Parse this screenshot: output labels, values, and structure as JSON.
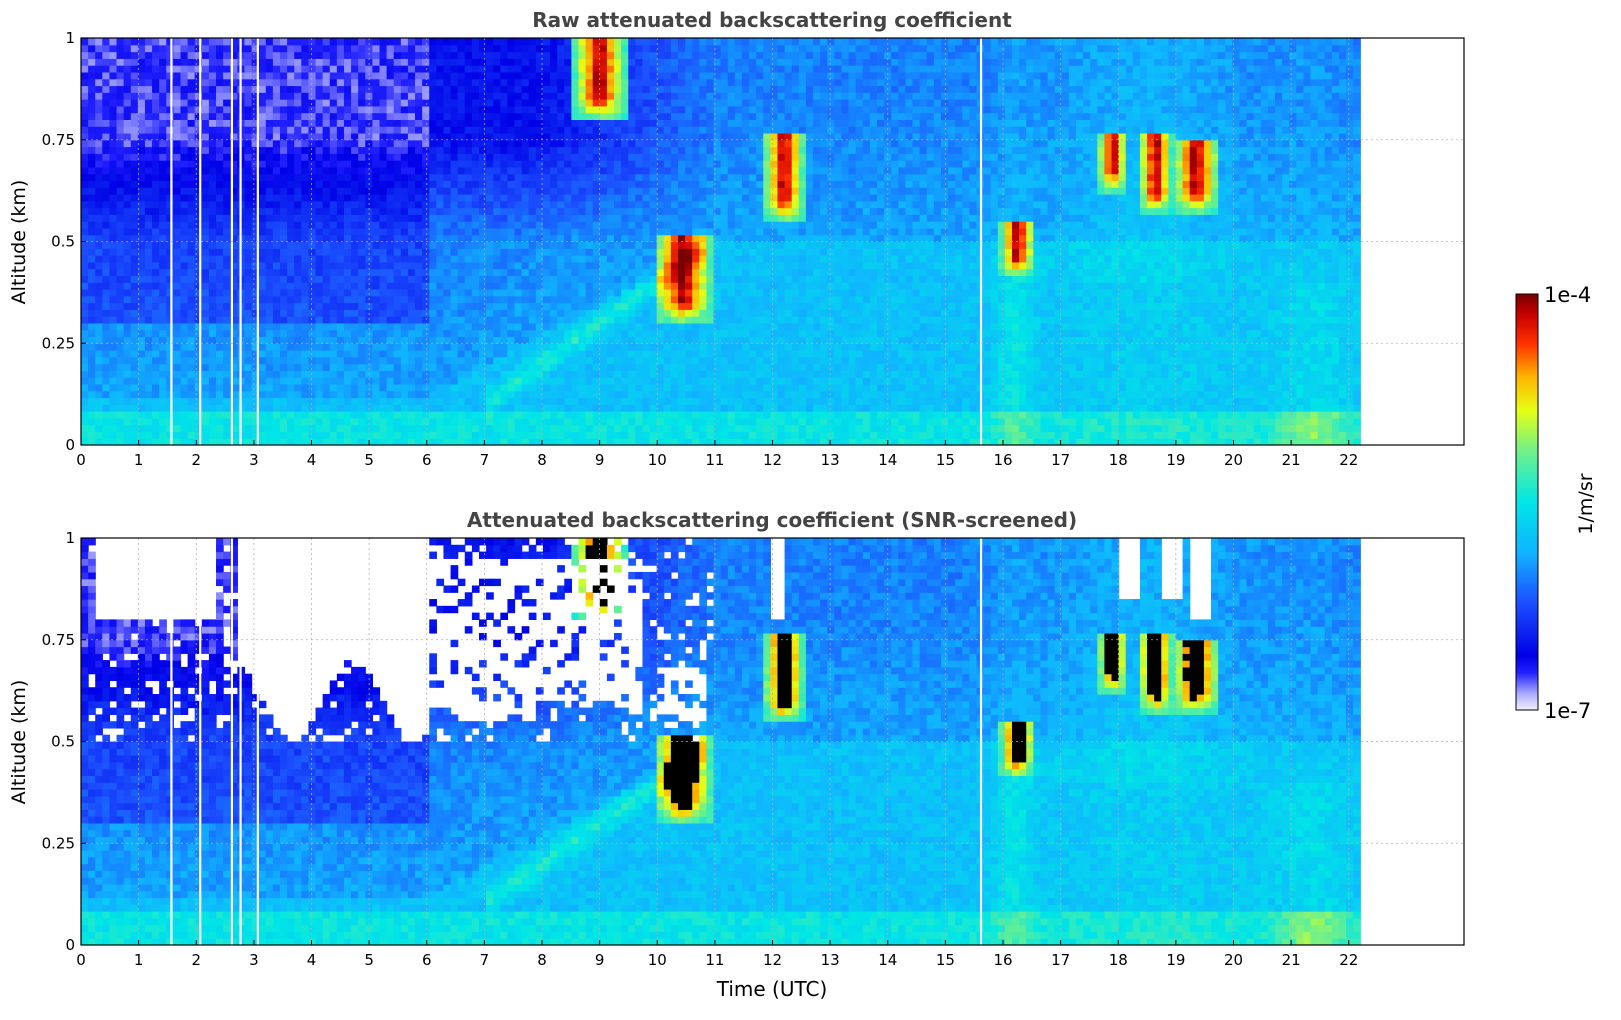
{
  "chart_data": {
    "type": "heatmap",
    "x_label_shared": "Time (UTC)",
    "panels": [
      {
        "title": "Raw attenuated backscattering coefficient",
        "xlabel": "",
        "ylabel": "Altitude (km)",
        "x_range": [
          0,
          24
        ],
        "y_range": [
          0,
          1
        ],
        "data_extent_x": [
          0,
          22.2
        ],
        "x_ticks": [
          "0",
          "1",
          "2",
          "3",
          "4",
          "5",
          "6",
          "7",
          "8",
          "9",
          "10",
          "11",
          "12",
          "13",
          "14",
          "15",
          "16",
          "17",
          "18",
          "19",
          "20",
          "21",
          "22"
        ],
        "y_ticks": [
          "0",
          "0.25",
          "0.5",
          "0.75",
          "1"
        ],
        "grid": true,
        "screened": false
      },
      {
        "title": "Attenuated backscattering coefficient (SNR-screened)",
        "xlabel": "Time (UTC)",
        "ylabel": "Altitude (km)",
        "x_range": [
          0,
          24
        ],
        "y_range": [
          0,
          1
        ],
        "data_extent_x": [
          0,
          22.2
        ],
        "x_ticks": [
          "0",
          "1",
          "2",
          "3",
          "4",
          "5",
          "6",
          "7",
          "8",
          "9",
          "10",
          "11",
          "12",
          "13",
          "14",
          "15",
          "16",
          "17",
          "18",
          "19",
          "20",
          "21",
          "22"
        ],
        "y_ticks": [
          "0",
          "0.25",
          "0.5",
          "0.75",
          "1"
        ],
        "grid": true,
        "screened": true
      }
    ],
    "colorbar": {
      "label": "1/m/sr",
      "max_label": "1e-4",
      "min_label": "1e-7",
      "scale": "log",
      "range": [
        1e-07,
        0.0001
      ],
      "colormap": "jet"
    },
    "features": {
      "cloud_events_utc": [
        {
          "start": 8.7,
          "end": 9.3,
          "alt_low": 0.85,
          "alt_high": 1.0
        },
        {
          "start": 10.1,
          "end": 10.8,
          "alt_low": 0.35,
          "alt_high": 0.5
        },
        {
          "start": 12.0,
          "end": 12.4,
          "alt_low": 0.6,
          "alt_high": 0.75
        },
        {
          "start": 16.1,
          "end": 16.4,
          "alt_low": 0.46,
          "alt_high": 0.53
        },
        {
          "start": 17.8,
          "end": 18.0,
          "alt_low": 0.67,
          "alt_high": 0.75
        },
        {
          "start": 18.5,
          "end": 18.8,
          "alt_low": 0.62,
          "alt_high": 0.75
        },
        {
          "start": 19.1,
          "end": 19.6,
          "alt_low": 0.62,
          "alt_high": 0.73
        }
      ]
    }
  }
}
